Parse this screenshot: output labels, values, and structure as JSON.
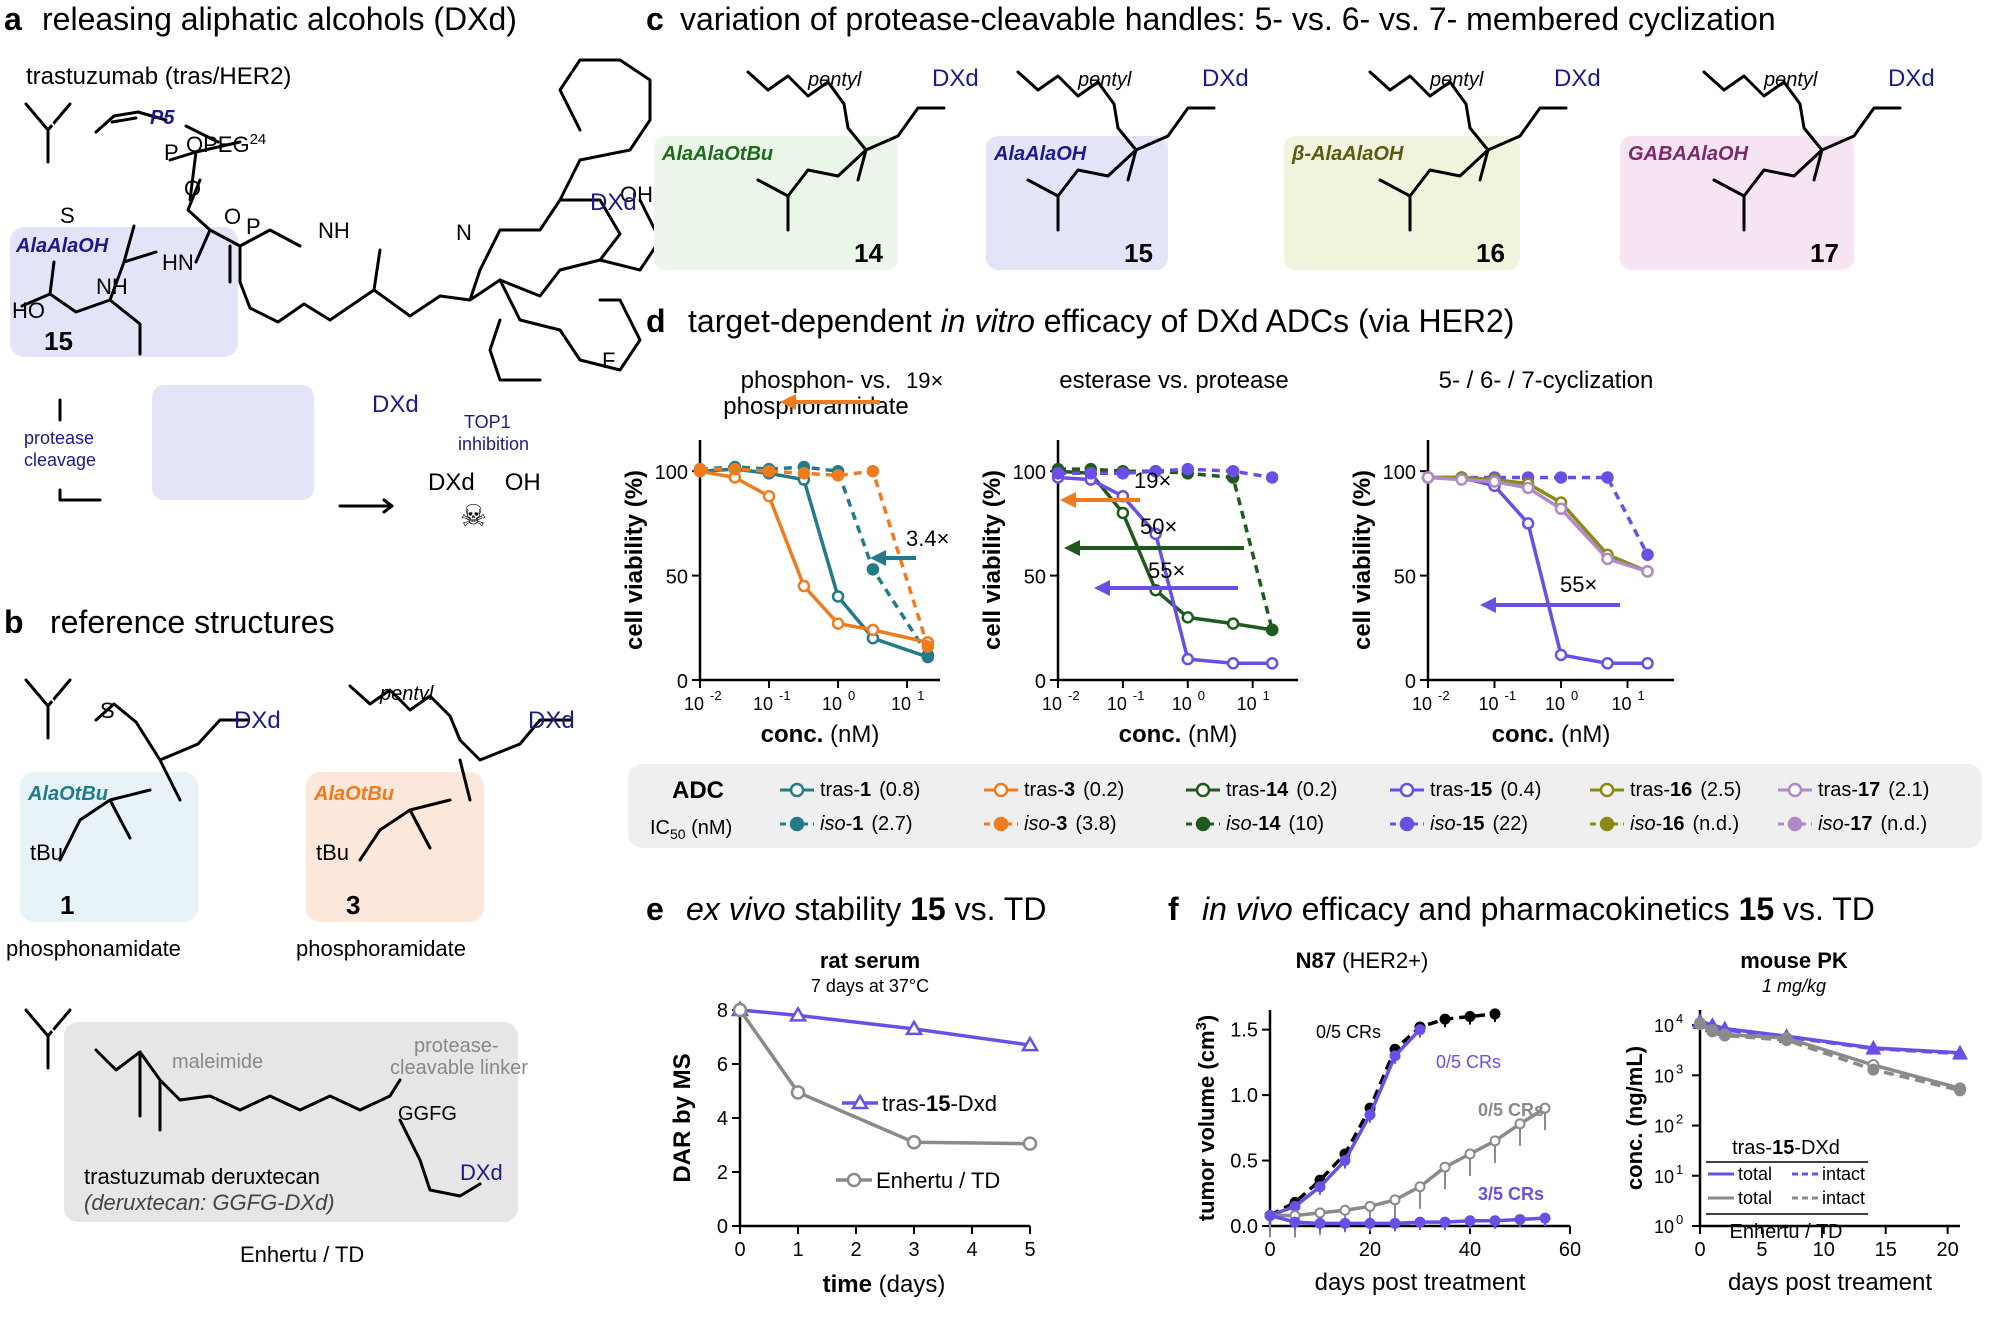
{
  "panels": {
    "a": {
      "letter": "a",
      "title": "releasing aliphatic alcohols (DXd)",
      "antibody": "trastuzumab (tras/HER2)",
      "p5": "P5",
      "opeg": "OPEG",
      "opeg_sup": "24",
      "box": "AlaAlaOH",
      "cmpd": "15",
      "dxd": "DXd",
      "cleave1": "protease",
      "cleave2": "cleavage",
      "top1a": "TOP1",
      "top1b": "inhibition",
      "dxd_oh": "DXd",
      "oh": "OH",
      "atoms": {
        "N": "N",
        "NH": "NH",
        "HN": "HN",
        "HO": "HO",
        "O": "O",
        "OH": "OH",
        "F": "F",
        "S": "S",
        "P": "P"
      }
    },
    "b": {
      "letter": "b",
      "title": "reference structures",
      "c1_box": "AlaOtBu",
      "c1_num": "1",
      "c1_label": "phosphonamidate",
      "c3_box": "AlaOtBu",
      "c3_num": "3",
      "c3_label": "phosphoramidate",
      "tbu": "tBu",
      "pentyl": "pentyl",
      "dxd": "DXd",
      "maleimide": "maleimide",
      "prot1": "protease-",
      "prot2": "cleavable linker",
      "ggfg": "GGFG",
      "td1": "trastuzumab deruxtecan",
      "td2": "(deruxtecan: GGFG-DXd)",
      "td_label": "Enhertu / TD"
    },
    "c": {
      "letter": "c",
      "title": "variation of protease-cleavable handles: 5- vs. 6- vs. 7- membered cyclization",
      "items": [
        {
          "box": "AlaAlaOtBu",
          "num": "14",
          "color": "#1e6b1e",
          "bg": "#eaf6e8"
        },
        {
          "box": "AlaAlaOH",
          "num": "15",
          "color": "#1a1a8c",
          "bg": "#e4e4f8"
        },
        {
          "box": "β-AlaAlaOH",
          "num": "16",
          "color": "#5a5a10",
          "bg": "#f1f3dc"
        },
        {
          "box": "GABAAlaOH",
          "num": "17",
          "color": "#7a2a6a",
          "bg": "#f6e4f2"
        }
      ],
      "pentyl": "pentyl",
      "dxd": "DXd"
    },
    "d": {
      "letter": "d",
      "title_pre": "target-dependent ",
      "title_it": "in vitro",
      "title_post": " efficacy of DXd ADCs (via HER2)",
      "plot_titles": [
        "phosphon- vs.",
        "phosphoramidate",
        "esterase vs. protease",
        "5- / 6- / 7-cyclization"
      ],
      "ylabel": "cell viability (%)",
      "xlabel_b": "conc.",
      "xlabel_u": " (nM)",
      "yticks": [
        "0",
        "50",
        "100"
      ],
      "xticks": [
        "10",
        "-2",
        "10",
        "-1",
        "10",
        "0",
        "10",
        "1"
      ],
      "folds": [
        "19×",
        "3.4×",
        "19×",
        "50×",
        "55×",
        "55×"
      ]
    },
    "legend": {
      "adc": "ADC",
      "ic50": "IC",
      "ic50_sub": "50",
      "ic50_unit": " (nM)",
      "tras": "tras-",
      "iso": "iso",
      "entries": [
        {
          "num": "1",
          "tras": "(0.8)",
          "iso": "(2.7)",
          "color": "#237a8a"
        },
        {
          "num": "3",
          "tras": "(0.2)",
          "iso": "(3.8)",
          "color": "#f07a1e"
        },
        {
          "num": "14",
          "tras": "(0.2)",
          "iso": "(10)",
          "color": "#1e5a1e"
        },
        {
          "num": "15",
          "tras": "(0.4)",
          "iso": "(22)",
          "color": "#6b4ee6"
        },
        {
          "num": "16",
          "tras": "(2.5)",
          "iso": "(n.d.)",
          "color": "#8a8a14"
        },
        {
          "num": "17",
          "tras": "(2.1)",
          "iso": "(n.d.)",
          "color": "#b08ac8"
        }
      ]
    },
    "e": {
      "letter": "e",
      "title_it": "ex vivo",
      "title_mid": " stability ",
      "title_b": "15",
      "title_post": " vs. TD",
      "plot_title": "rat serum",
      "subtitle": "7 days at 37°C",
      "ylabel": "DAR by MS",
      "xlabel_b": "time",
      "xlabel_u": " (days)",
      "legend_tras_pre": "tras-",
      "legend_tras_b": "15",
      "legend_tras_post": "-Dxd",
      "legend_td": "Enhertu / TD",
      "xticks": [
        "0",
        "1",
        "2",
        "3",
        "4",
        "5"
      ],
      "yticks": [
        "0",
        "2",
        "4",
        "6",
        "8"
      ]
    },
    "f": {
      "letter": "f",
      "title_it": "in vivo",
      "title_mid": " efficacy and pharmacokinetics ",
      "title_b": "15",
      "title_post": " vs. TD",
      "pt1_b": "N87",
      "pt1_n": " (HER2+)",
      "pt2": "mouse PK",
      "pt2_sub": "1 mg/kg",
      "ylabel1": "tumor volume (cm",
      "ylabel1_sup": "3",
      "ylabel1_end": ")",
      "xlabel1": "days post treatment",
      "xlabel2": "days post treament",
      "ylabel2": "conc. (ng/mL)",
      "crs": [
        "0/5 CRs",
        "0/5 CRs",
        "0/5 CRs",
        "3/5 CRs"
      ],
      "xticks1": [
        "0",
        "20",
        "40",
        "60"
      ],
      "yticks1": [
        "0.0",
        "0.5",
        "1.0",
        "1.5"
      ],
      "xticks2": [
        "0",
        "5",
        "10",
        "15",
        "20"
      ],
      "yticks2_base": [
        "10",
        "10",
        "10",
        "10",
        "10"
      ],
      "yticks2_exp": [
        "0",
        "1",
        "2",
        "3",
        "4"
      ],
      "leg_head_pre": "tras-",
      "leg_head_b": "15",
      "leg_head_post": "-DXd",
      "leg_total": "total",
      "leg_intact": "intact",
      "leg_foot": "Enhertu / TD"
    }
  },
  "chart_data": [
    {
      "type": "line",
      "panel": "d-left",
      "xscale": "log",
      "xlim": [
        0.01,
        30
      ],
      "ylim": [
        0,
        100
      ],
      "series": [
        {
          "name": "tras-1",
          "x": [
            0.01,
            0.032,
            0.1,
            0.32,
            1.0,
            3.2,
            20
          ],
          "y": [
            100,
            101,
            99,
            96,
            40,
            20,
            11
          ]
        },
        {
          "name": "iso-1",
          "x": [
            0.01,
            0.032,
            0.1,
            0.32,
            1.0,
            3.2,
            20
          ],
          "y": [
            101,
            102,
            101,
            102,
            100,
            53,
            12
          ]
        },
        {
          "name": "tras-3",
          "x": [
            0.01,
            0.032,
            0.1,
            0.32,
            1.0,
            3.2,
            20
          ],
          "y": [
            100,
            97,
            88,
            45,
            27,
            24,
            18
          ]
        },
        {
          "name": "iso-3",
          "x": [
            0.01,
            0.032,
            0.1,
            0.32,
            1.0,
            3.2,
            20
          ],
          "y": [
            101,
            101,
            100,
            99,
            98,
            100,
            16
          ]
        }
      ]
    },
    {
      "type": "line",
      "panel": "d-middle",
      "xscale": "log",
      "xlim": [
        0.01,
        50
      ],
      "ylim": [
        0,
        100
      ],
      "series": [
        {
          "name": "tras-14",
          "x": [
            0.01,
            0.032,
            0.1,
            0.32,
            1.0,
            5,
            20
          ],
          "y": [
            100,
            99,
            80,
            43,
            30,
            27,
            24
          ]
        },
        {
          "name": "iso-14",
          "x": [
            0.01,
            0.032,
            0.1,
            0.32,
            1.0,
            5,
            20
          ],
          "y": [
            101,
            101,
            100,
            100,
            99,
            97,
            24
          ]
        },
        {
          "name": "tras-15",
          "x": [
            0.01,
            0.032,
            0.1,
            0.32,
            1.0,
            5,
            20
          ],
          "y": [
            97,
            96,
            88,
            70,
            10,
            8,
            8
          ]
        },
        {
          "name": "iso-15",
          "x": [
            0.01,
            0.032,
            0.1,
            0.32,
            1.0,
            5,
            20
          ],
          "y": [
            99,
            99,
            99,
            100,
            101,
            100,
            97
          ]
        }
      ]
    },
    {
      "type": "line",
      "panel": "d-right",
      "xscale": "log",
      "xlim": [
        0.01,
        50
      ],
      "ylim": [
        0,
        100
      ],
      "series": [
        {
          "name": "tras-15",
          "x": [
            0.01,
            0.032,
            0.1,
            0.32,
            1.0,
            5,
            20
          ],
          "y": [
            97,
            97,
            93,
            75,
            12,
            8,
            8
          ]
        },
        {
          "name": "iso-15",
          "x": [
            0.01,
            0.032,
            0.1,
            0.32,
            1.0,
            5,
            20
          ],
          "y": [
            97,
            97,
            97,
            97,
            97,
            97,
            60
          ]
        },
        {
          "name": "tras-16",
          "x": [
            0.01,
            0.032,
            0.1,
            0.32,
            1.0,
            5,
            20
          ],
          "y": [
            97,
            97,
            96,
            94,
            85,
            60,
            52
          ]
        },
        {
          "name": "tras-17",
          "x": [
            0.01,
            0.032,
            0.1,
            0.32,
            1.0,
            5,
            20
          ],
          "y": [
            97,
            96,
            95,
            92,
            82,
            58,
            52
          ]
        }
      ]
    },
    {
      "type": "line",
      "panel": "e",
      "xlim": [
        0,
        5
      ],
      "ylim": [
        0,
        8
      ],
      "series": [
        {
          "name": "tras-15-Dxd",
          "x": [
            0,
            1,
            3,
            5
          ],
          "y": [
            8.0,
            7.8,
            7.3,
            6.7
          ]
        },
        {
          "name": "Enhertu / TD",
          "x": [
            0,
            1,
            3,
            5
          ],
          "y": [
            8.0,
            4.95,
            3.1,
            3.05
          ]
        }
      ]
    },
    {
      "type": "line",
      "panel": "f-left",
      "xlim": [
        0,
        60
      ],
      "ylim": [
        0,
        1.65
      ],
      "series": [
        {
          "x": [
            0,
            5,
            10,
            15,
            20,
            25,
            30,
            35,
            40,
            45
          ],
          "y": [
            0.08,
            0.18,
            0.35,
            0.55,
            0.9,
            1.35,
            1.52,
            1.58,
            1.6,
            1.62
          ]
        },
        {
          "x": [
            0,
            5,
            10,
            15,
            20,
            25,
            30
          ],
          "y": [
            0.08,
            0.15,
            0.3,
            0.5,
            0.85,
            1.3,
            1.5
          ]
        },
        {
          "x": [
            0,
            5,
            10,
            15,
            20,
            25,
            30,
            35,
            40,
            45,
            50,
            55
          ],
          "y": [
            0.08,
            0.08,
            0.1,
            0.12,
            0.15,
            0.2,
            0.3,
            0.45,
            0.55,
            0.65,
            0.78,
            0.9
          ]
        },
        {
          "x": [
            0,
            5,
            10,
            15,
            20,
            25,
            30,
            35,
            40,
            45,
            50,
            55
          ],
          "y": [
            0.08,
            0.03,
            0.02,
            0.02,
            0.02,
            0.02,
            0.03,
            0.03,
            0.04,
            0.04,
            0.05,
            0.06
          ]
        }
      ]
    },
    {
      "type": "line",
      "panel": "f-right",
      "yscale": "log",
      "xlim": [
        0,
        21
      ],
      "ylim": [
        1,
        20000
      ],
      "series": [
        {
          "name": "total",
          "x": [
            0,
            1,
            2,
            7,
            14,
            21
          ],
          "y": [
            12000,
            10000,
            8500,
            6000,
            3500,
            2800
          ]
        },
        {
          "name": "intact",
          "x": [
            0,
            1,
            2,
            7,
            14,
            21
          ],
          "y": [
            11000,
            9500,
            8000,
            5800,
            3400,
            2700
          ]
        },
        {
          "name": "total",
          "x": [
            0,
            1,
            2,
            7,
            14,
            21
          ],
          "y": [
            11000,
            8000,
            6500,
            5500,
            1600,
            550
          ]
        },
        {
          "name": "intact",
          "x": [
            0,
            1,
            2,
            7,
            14,
            21
          ],
          "y": [
            10500,
            7500,
            6200,
            5000,
            1300,
            500
          ]
        }
      ]
    }
  ]
}
